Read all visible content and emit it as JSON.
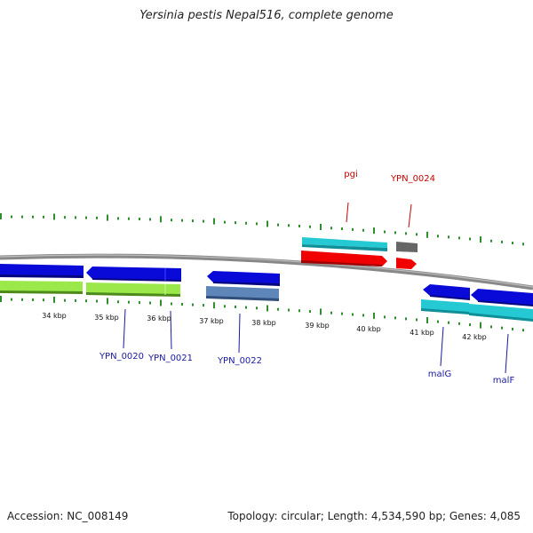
{
  "title": "Yersinia pestis Nepal516, complete genome",
  "footer": {
    "accession": "Accession: NC_008149",
    "summary": "Topology: circular; Length: 4,534,590 bp; Genes: 4,085"
  },
  "scale_labels": [
    "34 kbp",
    "35 kbp",
    "36 kbp",
    "37 kbp",
    "38 kbp",
    "39 kbp",
    "40 kbp",
    "41 kbp",
    "42 kbp"
  ],
  "gene_labels": {
    "pgi": "pgi",
    "ypn_0024": "YPN_0024",
    "ypn_0020": "YPN_0020",
    "ypn_0021": "YPN_0021",
    "ypn_0022": "YPN_0022",
    "malg": "malG",
    "malf": "malF"
  },
  "colors": {
    "backbone": "#7a7a7a",
    "tick": "#2f8f2f",
    "gene_blue": "#0a0ad8",
    "cds_green": "#9be84a",
    "cds_cyan": "#25c9d3",
    "steel": "#5e86b8",
    "red": "#f00000",
    "gray": "#666666",
    "label_red": "#cc0000",
    "label_blue": "#1a1aa0"
  }
}
